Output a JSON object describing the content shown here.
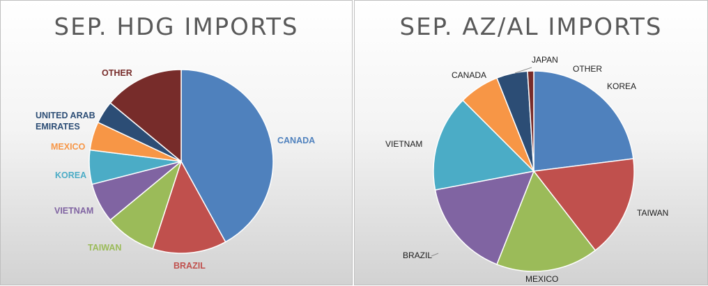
{
  "chart_data": [
    {
      "type": "pie",
      "title": "SEP. HDG IMPORTS",
      "slices": [
        {
          "label": "CANADA",
          "value": 42,
          "color": "#4f81bd"
        },
        {
          "label": "BRAZIL",
          "value": 13,
          "color": "#c0504d"
        },
        {
          "label": "TAIWAN",
          "value": 9,
          "color": "#9bbb59"
        },
        {
          "label": "VIETNAM",
          "value": 7,
          "color": "#8064a2"
        },
        {
          "label": "KOREA",
          "value": 6,
          "color": "#4bacc6"
        },
        {
          "label": "MEXICO",
          "value": 5,
          "color": "#f79646"
        },
        {
          "label": "UNITED ARAB EMIRATES",
          "value": 4,
          "color": "#2c4d75"
        },
        {
          "label": "OTHER",
          "value": 14,
          "color": "#772c2a"
        }
      ],
      "labels_colored": true
    },
    {
      "type": "pie",
      "title": "SEP. AZ/AL IMPORTS",
      "slices": [
        {
          "label": "KOREA",
          "value": 23,
          "color": "#4f81bd"
        },
        {
          "label": "TAIWAN",
          "value": 16.5,
          "color": "#c0504d"
        },
        {
          "label": "MEXICO",
          "value": 16.5,
          "color": "#9bbb59"
        },
        {
          "label": "BRAZIL",
          "value": 16,
          "color": "#8064a2"
        },
        {
          "label": "VIETNAM",
          "value": 15.5,
          "color": "#4bacc6"
        },
        {
          "label": "CANADA",
          "value": 6.5,
          "color": "#f79646"
        },
        {
          "label": "JAPAN",
          "value": 5,
          "color": "#2c4d75"
        },
        {
          "label": "OTHER",
          "value": 1,
          "color": "#772c2a"
        }
      ],
      "labels_colored": false
    }
  ]
}
